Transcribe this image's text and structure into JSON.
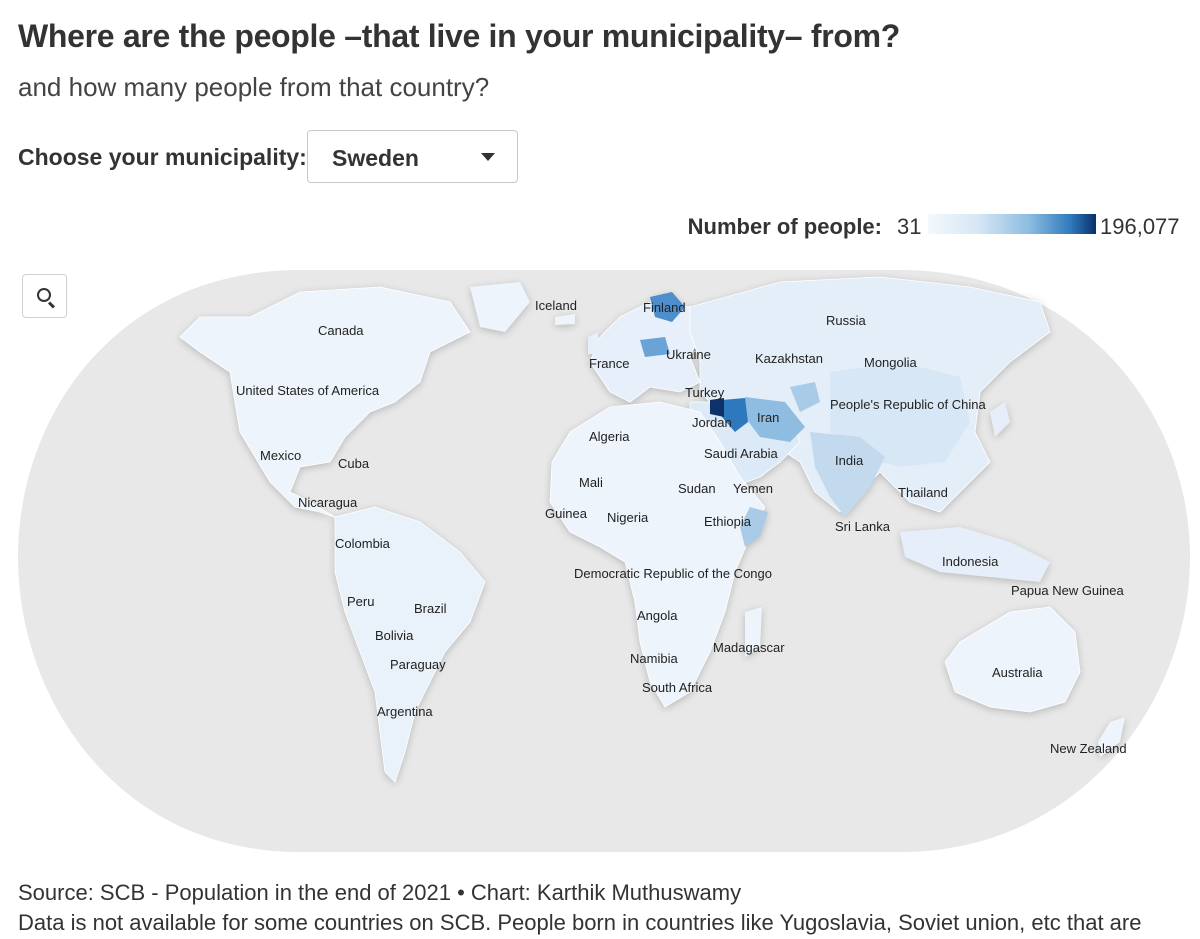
{
  "header": {
    "title": "Where are the people –that live in your municipality– from?",
    "subtitle": "and how many people from that country?"
  },
  "chooser": {
    "label": "Choose your municipality:",
    "selected": "Sweden"
  },
  "legend": {
    "title": "Number of people:",
    "min": "31",
    "max": "196,077",
    "colors": [
      "#f4f8fd",
      "#d6e6f5",
      "#8cbde0",
      "#2f79bd",
      "#08306b"
    ]
  },
  "map": {
    "search_icon": "search-icon",
    "ocean_color": "#e8e8e8",
    "land_color": "#f0f5fb",
    "country_labels": {
      "canada": "Canada",
      "usa": "United States of America",
      "mexico": "Mexico",
      "cuba": "Cuba",
      "nicaragua": "Nicaragua",
      "colombia": "Colombia",
      "peru": "Peru",
      "brazil": "Brazil",
      "bolivia": "Bolivia",
      "paraguay": "Paraguay",
      "argentina": "Argentina",
      "iceland": "Iceland",
      "finland": "Finland",
      "russia": "Russia",
      "ukraine": "Ukraine",
      "france": "France",
      "kazakhstan": "Kazakhstan",
      "mongolia": "Mongolia",
      "turkey": "Turkey",
      "iran": "Iran",
      "jordan": "Jordan",
      "china": "People's Republic of China",
      "algeria": "Algeria",
      "saudi": "Saudi Arabia",
      "india": "India",
      "mali": "Mali",
      "sudan": "Sudan",
      "yemen": "Yemen",
      "thailand": "Thailand",
      "guinea": "Guinea",
      "nigeria": "Nigeria",
      "ethiopia": "Ethiopia",
      "srilanka": "Sri Lanka",
      "indonesia": "Indonesia",
      "drc": "Democratic Republic of the Congo",
      "png": "Papua New Guinea",
      "angola": "Angola",
      "madagascar": "Madagascar",
      "namibia": "Namibia",
      "southafrica": "South Africa",
      "australia": "Australia",
      "newzealand": "New Zealand"
    }
  },
  "footer": {
    "source": "Source: SCB - Population in the end of 2021 • Chart: Karthik Muthuswamy",
    "note": "Data is not available for some countries on SCB. People born in countries like Yugoslavia, Soviet union, etc that are"
  }
}
